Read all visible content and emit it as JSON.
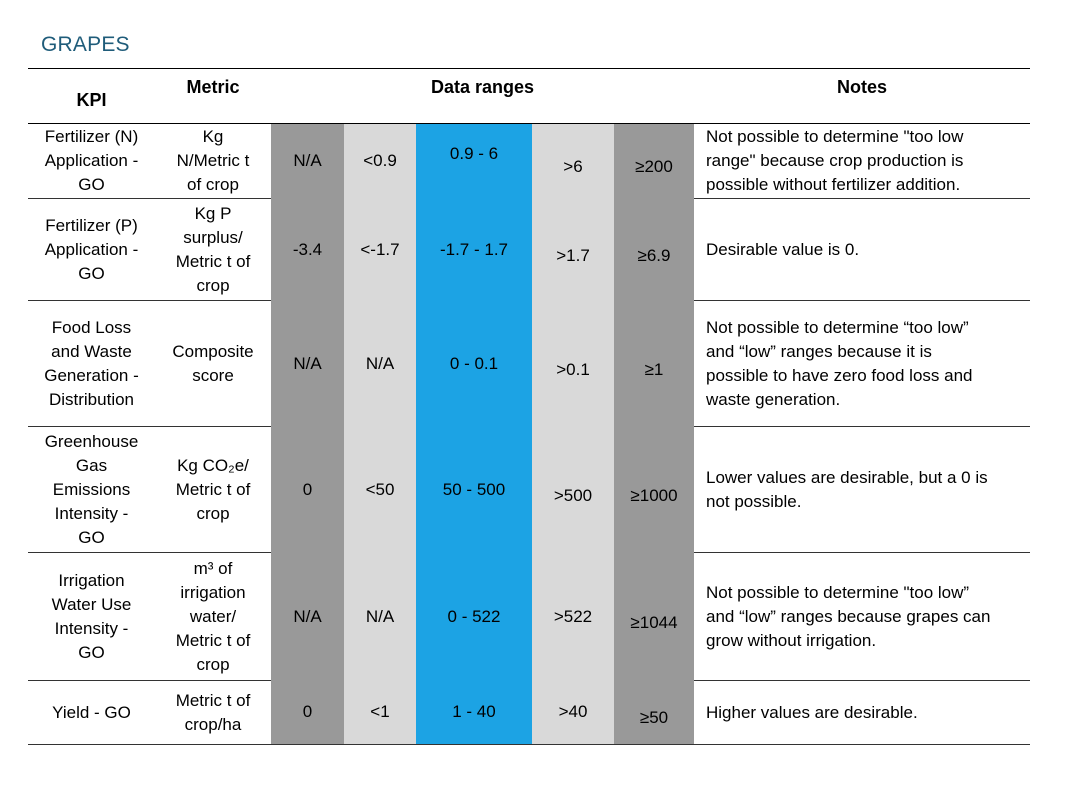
{
  "title": "GRAPES",
  "headers": {
    "kpi": "KPI",
    "metric": "Metric",
    "ranges": "Data ranges",
    "notes": "Notes"
  },
  "range_colors": [
    "#999999",
    "#d9d9d9",
    "#1ca3e4",
    "#d9d9d9",
    "#999999"
  ],
  "rows": [
    {
      "kpi": [
        "Fertilizer (N)",
        "Application -",
        "GO"
      ],
      "metric": [
        "Kg",
        "N/Metric t",
        "of crop"
      ],
      "ranges": [
        "N/A",
        "<0.9",
        "0.9 - 6",
        ">6",
        "≥200"
      ],
      "notes": [
        "Not possible to determine \"too low",
        "range\" because crop production is",
        "possible without fertilizer addition."
      ]
    },
    {
      "kpi": [
        "Fertilizer (P)",
        "Application -",
        "GO"
      ],
      "metric": [
        "Kg P",
        "surplus/",
        "Metric t of",
        "crop"
      ],
      "ranges": [
        "-3.4",
        "<-1.7",
        "-1.7 - 1.7",
        ">1.7",
        "≥6.9"
      ],
      "notes": [
        "Desirable value is 0."
      ]
    },
    {
      "kpi": [
        "Food Loss",
        "and Waste",
        "Generation -",
        "Distribution"
      ],
      "metric": [
        "Composite",
        "score"
      ],
      "ranges": [
        "N/A",
        "N/A",
        "0 - 0.1",
        ">0.1",
        "≥1"
      ],
      "notes": [
        "Not possible to determine “too low”",
        "and “low” ranges because it is",
        "possible to have zero food loss and",
        "waste generation."
      ]
    },
    {
      "kpi": [
        "Greenhouse",
        "Gas",
        "Emissions",
        "Intensity -",
        "GO"
      ],
      "metric": [
        "Kg CO₂e/",
        "Metric t of",
        "crop"
      ],
      "ranges": [
        "0",
        "<50",
        "50 - 500",
        ">500",
        "≥1000"
      ],
      "notes": [
        "Lower values are desirable, but a 0 is",
        "not possible."
      ]
    },
    {
      "kpi": [
        "Irrigation",
        "Water Use",
        "Intensity -",
        "GO"
      ],
      "metric": [
        "m³ of",
        "irrigation",
        "water/",
        "Metric t of",
        "crop"
      ],
      "ranges": [
        "N/A",
        "N/A",
        "0 - 522",
        ">522",
        "≥1044"
      ],
      "notes": [
        "Not possible to determine \"too low”",
        "and “low” ranges because grapes can",
        "grow without irrigation."
      ]
    },
    {
      "kpi": [
        "Yield - GO"
      ],
      "metric": [
        "Metric t of",
        "crop/ha"
      ],
      "ranges": [
        "0",
        "<1",
        "1 - 40",
        ">40",
        "≥50"
      ],
      "notes": [
        "Higher values are desirable."
      ]
    }
  ]
}
